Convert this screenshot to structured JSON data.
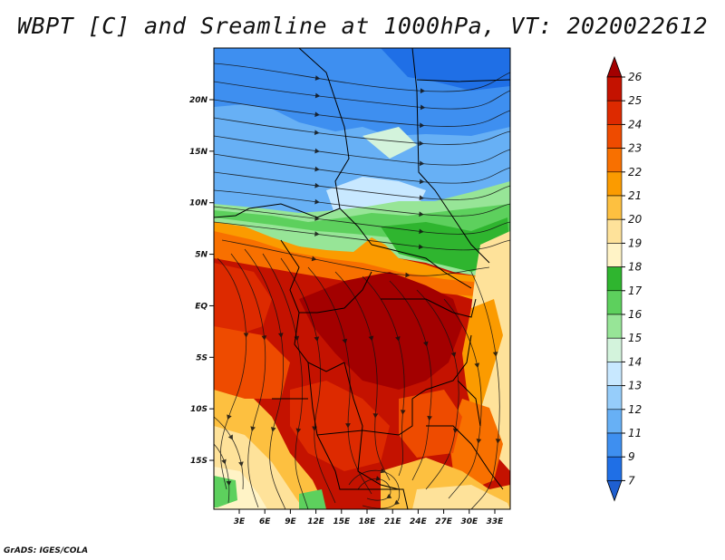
{
  "title": "WBPT [C] and Sreamline at 1000hPa, VT: 2020022612",
  "footer": "GrADS: IGES/COLA",
  "map": {
    "lat_ticks": [
      "20N",
      "15N",
      "10N",
      "5N",
      "EQ",
      "5S",
      "10S",
      "15S"
    ],
    "lon_ticks": [
      "3E",
      "6E",
      "9E",
      "12E",
      "15E",
      "18E",
      "21E",
      "24E",
      "27E",
      "30E",
      "33E"
    ]
  },
  "colorbar": {
    "labels": [
      "26",
      "25",
      "24",
      "23",
      "22",
      "21",
      "20",
      "19",
      "18",
      "17",
      "16",
      "15",
      "14",
      "13",
      "12",
      "11",
      "9",
      "7"
    ],
    "colors": [
      "#a30000",
      "#c41200",
      "#dd2a00",
      "#ee4b00",
      "#f87000",
      "#fb9b00",
      "#fdc040",
      "#fee29a",
      "#fff3c6",
      "#2fb52f",
      "#5dd05d",
      "#97e597",
      "#d3f3dc",
      "#c8e8ff",
      "#96cdfa",
      "#67b0f5",
      "#3e8ff0",
      "#1f6fe6",
      "#1e5fd0"
    ]
  },
  "colors": {
    "cold": "#3e8ff0",
    "hot": "#c41200",
    "warm": "#fdc040"
  }
}
